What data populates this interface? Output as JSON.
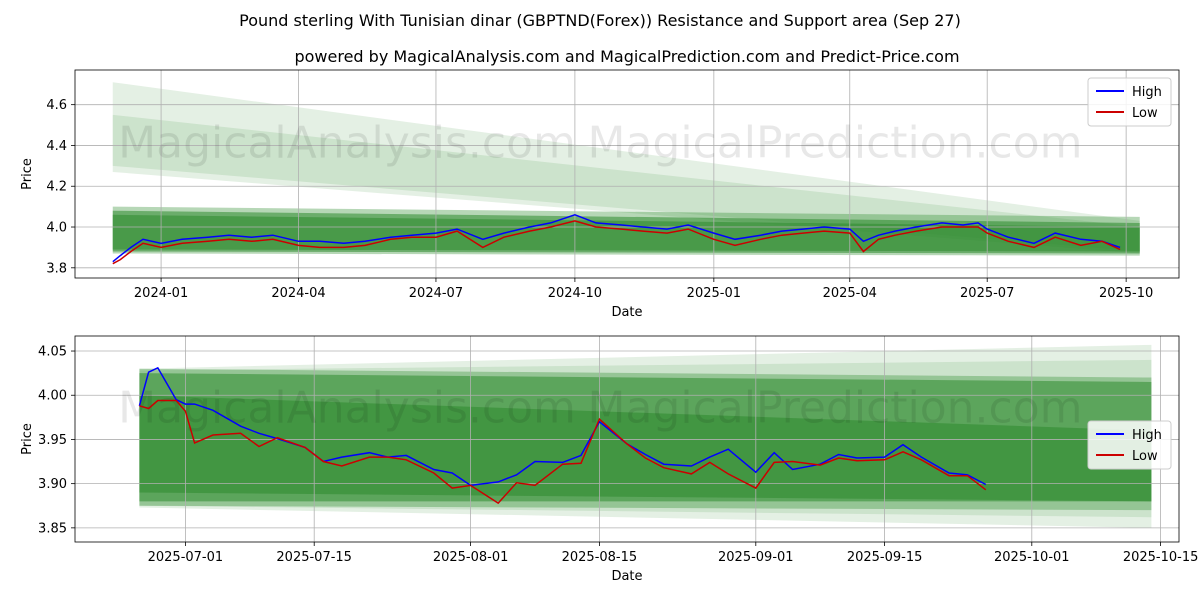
{
  "title": "Pound sterling With Tunisian dinar (GBPTND(Forex)) Resistance and Support area (Sep 27)",
  "subtitle": "powered by MagicalAnalysis.com and MagicalPrediction.com and Predict-Price.com",
  "watermarks": [
    "MagicalAnalysis.com",
    "MagicalPrediction.com"
  ],
  "colors": {
    "high": "#0000ff",
    "low": "#cc0000",
    "band_dark": "#2e8b2e",
    "band_light": "#90c890",
    "grid": "#b0b0b0"
  },
  "chart_data": [
    {
      "type": "line",
      "xlabel": "Date",
      "ylabel": "Price",
      "xlim": [
        "2023-11-05",
        "2025-11-05"
      ],
      "ylim": [
        3.75,
        4.77
      ],
      "xticks": [
        "2024-01",
        "2024-04",
        "2024-07",
        "2024-10",
        "2025-01",
        "2025-04",
        "2025-07",
        "2025-10"
      ],
      "xtick_dates": [
        "2024-01-01",
        "2024-04-01",
        "2024-07-01",
        "2024-10-01",
        "2025-01-01",
        "2025-04-01",
        "2025-07-01",
        "2025-10-01"
      ],
      "yticks": [
        3.8,
        4.0,
        4.2,
        4.4,
        4.6
      ],
      "ytick_labels": [
        "3.8",
        "4.0",
        "4.2",
        "4.4",
        "4.6"
      ],
      "legend": [
        "High",
        "Low"
      ],
      "legend_position": "top-right",
      "bands": [
        {
          "x": [
            "2023-11-30",
            "2025-10-10"
          ],
          "upper": [
            4.71,
            4.03
          ],
          "lower": [
            4.27,
            3.87
          ],
          "shade": "light"
        },
        {
          "x": [
            "2023-11-30",
            "2025-10-10"
          ],
          "upper": [
            4.55,
            4.0
          ],
          "lower": [
            4.3,
            3.88
          ],
          "shade": "light"
        },
        {
          "x": [
            "2023-11-30",
            "2025-10-10"
          ],
          "upper": [
            4.1,
            4.05
          ],
          "lower": [
            3.87,
            3.86
          ],
          "shade": "mid"
        },
        {
          "x": [
            "2023-11-30",
            "2025-10-10"
          ],
          "upper": [
            4.08,
            4.02
          ],
          "lower": [
            3.88,
            3.87
          ],
          "shade": "dark"
        },
        {
          "x": [
            "2023-11-30",
            "2025-10-10"
          ],
          "upper": [
            4.06,
            4.0
          ],
          "lower": [
            3.89,
            3.88
          ],
          "shade": "dark"
        }
      ],
      "series": [
        {
          "name": "High",
          "dates": [
            "2023-11-30",
            "2023-12-05",
            "2023-12-12",
            "2023-12-20",
            "2024-01-01",
            "2024-01-15",
            "2024-02-01",
            "2024-02-15",
            "2024-03-01",
            "2024-03-15",
            "2024-04-01",
            "2024-04-15",
            "2024-05-01",
            "2024-05-15",
            "2024-06-01",
            "2024-06-15",
            "2024-07-01",
            "2024-07-15",
            "2024-08-01",
            "2024-08-15",
            "2024-09-01",
            "2024-09-15",
            "2024-10-01",
            "2024-10-15",
            "2024-11-01",
            "2024-11-15",
            "2024-12-01",
            "2024-12-15",
            "2025-01-01",
            "2025-01-15",
            "2025-02-01",
            "2025-02-15",
            "2025-03-01",
            "2025-03-15",
            "2025-04-01",
            "2025-04-10",
            "2025-04-20",
            "2025-05-01",
            "2025-05-15",
            "2025-06-01",
            "2025-06-15",
            "2025-06-25",
            "2025-07-01",
            "2025-07-15",
            "2025-08-01",
            "2025-08-15",
            "2025-09-01",
            "2025-09-15",
            "2025-09-27"
          ],
          "values": [
            3.83,
            3.86,
            3.9,
            3.94,
            3.92,
            3.94,
            3.95,
            3.96,
            3.95,
            3.96,
            3.93,
            3.93,
            3.92,
            3.93,
            3.95,
            3.96,
            3.97,
            3.99,
            3.94,
            3.97,
            4.0,
            4.02,
            4.06,
            4.02,
            4.01,
            4.0,
            3.99,
            4.01,
            3.97,
            3.94,
            3.96,
            3.98,
            3.99,
            4.0,
            3.99,
            3.93,
            3.96,
            3.98,
            4.0,
            4.02,
            4.01,
            4.02,
            3.99,
            3.95,
            3.92,
            3.97,
            3.94,
            3.93,
            3.9
          ]
        },
        {
          "name": "Low",
          "dates": [
            "2023-11-30",
            "2023-12-05",
            "2023-12-12",
            "2023-12-20",
            "2024-01-01",
            "2024-01-15",
            "2024-02-01",
            "2024-02-15",
            "2024-03-01",
            "2024-03-15",
            "2024-04-01",
            "2024-04-15",
            "2024-05-01",
            "2024-05-15",
            "2024-06-01",
            "2024-06-15",
            "2024-07-01",
            "2024-07-15",
            "2024-08-01",
            "2024-08-15",
            "2024-09-01",
            "2024-09-15",
            "2024-10-01",
            "2024-10-15",
            "2024-11-01",
            "2024-11-15",
            "2024-12-01",
            "2024-12-15",
            "2025-01-01",
            "2025-01-15",
            "2025-02-01",
            "2025-02-15",
            "2025-03-01",
            "2025-03-15",
            "2025-04-01",
            "2025-04-10",
            "2025-04-20",
            "2025-05-01",
            "2025-05-15",
            "2025-06-01",
            "2025-06-15",
            "2025-06-25",
            "2025-07-01",
            "2025-07-15",
            "2025-08-01",
            "2025-08-15",
            "2025-09-01",
            "2025-09-15",
            "2025-09-27"
          ],
          "values": [
            3.82,
            3.84,
            3.88,
            3.92,
            3.9,
            3.92,
            3.93,
            3.94,
            3.93,
            3.94,
            3.91,
            3.9,
            3.9,
            3.91,
            3.94,
            3.95,
            3.95,
            3.98,
            3.9,
            3.95,
            3.98,
            4.0,
            4.03,
            4.0,
            3.99,
            3.98,
            3.97,
            3.99,
            3.94,
            3.91,
            3.94,
            3.96,
            3.97,
            3.98,
            3.97,
            3.88,
            3.94,
            3.96,
            3.98,
            4.0,
            4.0,
            4.0,
            3.97,
            3.93,
            3.9,
            3.95,
            3.91,
            3.93,
            3.89
          ]
        }
      ]
    },
    {
      "type": "line",
      "xlabel": "Date",
      "ylabel": "Price",
      "xlim": [
        "2025-06-19",
        "2025-10-17"
      ],
      "ylim": [
        3.834,
        4.067
      ],
      "xticks": [
        "2025-07-01",
        "2025-07-15",
        "2025-08-01",
        "2025-08-15",
        "2025-09-01",
        "2025-09-15",
        "2025-10-01",
        "2025-10-15"
      ],
      "yticks": [
        3.85,
        3.9,
        3.95,
        4.0,
        4.05
      ],
      "ytick_labels": [
        "3.85",
        "3.90",
        "3.95",
        "4.00",
        "4.05"
      ],
      "legend": [
        "High",
        "Low"
      ],
      "legend_position": "center-right",
      "bands": [
        {
          "x": [
            "2025-06-26",
            "2025-10-14"
          ],
          "upper": [
            4.03,
            4.057
          ],
          "lower": [
            3.873,
            3.85
          ],
          "shade": "light"
        },
        {
          "x": [
            "2025-06-26",
            "2025-10-14"
          ],
          "upper": [
            4.028,
            4.04
          ],
          "lower": [
            3.875,
            3.862
          ],
          "shade": "light"
        },
        {
          "x": [
            "2025-06-26",
            "2025-10-14"
          ],
          "upper": [
            4.03,
            4.02
          ],
          "lower": [
            3.875,
            3.87
          ],
          "shade": "mid"
        },
        {
          "x": [
            "2025-06-26",
            "2025-10-14"
          ],
          "upper": [
            4.025,
            4.015
          ],
          "lower": [
            3.88,
            3.88
          ],
          "shade": "dark"
        },
        {
          "x": [
            "2025-06-26",
            "2025-10-14"
          ],
          "upper": [
            4.0,
            3.96
          ],
          "lower": [
            3.89,
            3.88
          ],
          "shade": "dark"
        }
      ],
      "series": [
        {
          "name": "High",
          "dates": [
            "2025-06-26",
            "2025-06-27",
            "2025-06-28",
            "2025-06-30",
            "2025-07-01",
            "2025-07-02",
            "2025-07-04",
            "2025-07-07",
            "2025-07-09",
            "2025-07-11",
            "2025-07-14",
            "2025-07-16",
            "2025-07-18",
            "2025-07-21",
            "2025-07-23",
            "2025-07-25",
            "2025-07-28",
            "2025-07-30",
            "2025-08-01",
            "2025-08-04",
            "2025-08-06",
            "2025-08-08",
            "2025-08-11",
            "2025-08-13",
            "2025-08-15",
            "2025-08-18",
            "2025-08-20",
            "2025-08-22",
            "2025-08-25",
            "2025-08-27",
            "2025-08-29",
            "2025-09-01",
            "2025-09-03",
            "2025-09-05",
            "2025-09-08",
            "2025-09-10",
            "2025-09-12",
            "2025-09-15",
            "2025-09-17",
            "2025-09-19",
            "2025-09-22",
            "2025-09-24",
            "2025-09-26"
          ],
          "values": [
            3.988,
            4.026,
            4.031,
            3.995,
            3.99,
            3.99,
            3.983,
            3.965,
            3.957,
            3.951,
            3.941,
            3.925,
            3.93,
            3.935,
            3.93,
            3.932,
            3.916,
            3.912,
            3.898,
            3.902,
            3.91,
            3.925,
            3.924,
            3.932,
            3.97,
            3.945,
            3.933,
            3.922,
            3.92,
            3.93,
            3.939,
            3.913,
            3.935,
            3.916,
            3.922,
            3.933,
            3.929,
            3.93,
            3.944,
            3.93,
            3.912,
            3.91,
            3.899
          ]
        },
        {
          "name": "Low",
          "dates": [
            "2025-06-26",
            "2025-06-27",
            "2025-06-28",
            "2025-06-30",
            "2025-07-01",
            "2025-07-02",
            "2025-07-04",
            "2025-07-07",
            "2025-07-09",
            "2025-07-11",
            "2025-07-14",
            "2025-07-16",
            "2025-07-18",
            "2025-07-21",
            "2025-07-23",
            "2025-07-25",
            "2025-07-28",
            "2025-07-30",
            "2025-08-01",
            "2025-08-04",
            "2025-08-06",
            "2025-08-08",
            "2025-08-11",
            "2025-08-13",
            "2025-08-15",
            "2025-08-18",
            "2025-08-20",
            "2025-08-22",
            "2025-08-25",
            "2025-08-27",
            "2025-08-29",
            "2025-09-01",
            "2025-09-03",
            "2025-09-05",
            "2025-09-08",
            "2025-09-10",
            "2025-09-12",
            "2025-09-15",
            "2025-09-17",
            "2025-09-19",
            "2025-09-22",
            "2025-09-24",
            "2025-09-26"
          ],
          "values": [
            3.988,
            3.985,
            3.994,
            3.994,
            3.982,
            3.946,
            3.955,
            3.957,
            3.942,
            3.952,
            3.941,
            3.925,
            3.92,
            3.93,
            3.93,
            3.927,
            3.912,
            3.895,
            3.898,
            3.878,
            3.901,
            3.898,
            3.922,
            3.923,
            3.973,
            3.945,
            3.929,
            3.918,
            3.911,
            3.924,
            3.911,
            3.895,
            3.924,
            3.925,
            3.921,
            3.929,
            3.926,
            3.927,
            3.936,
            3.927,
            3.909,
            3.909,
            3.893
          ]
        }
      ]
    }
  ]
}
